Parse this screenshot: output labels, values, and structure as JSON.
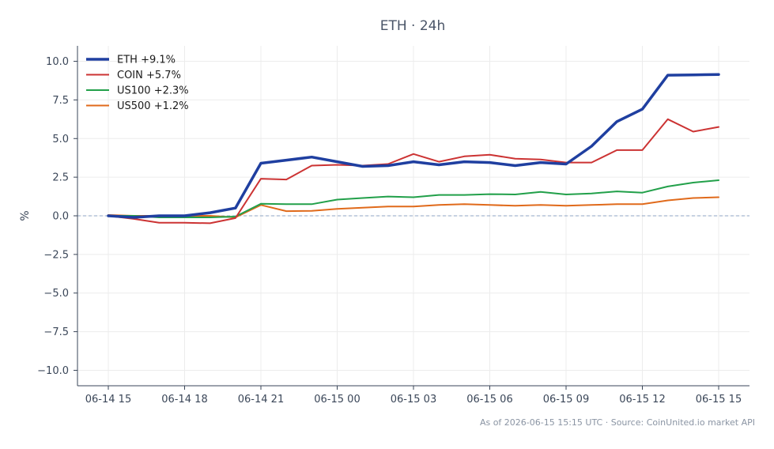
{
  "chart_data": {
    "type": "line",
    "title": "ETH · 24h",
    "ylabel": "%",
    "xlabel": "",
    "ylim": [
      -11,
      11
    ],
    "yticks": [
      10.0,
      7.5,
      5.0,
      2.5,
      0.0,
      -2.5,
      -5.0,
      -7.5,
      -10.0
    ],
    "ytick_labels": [
      "10.0",
      "7.5",
      "5.0",
      "2.5",
      "0.0",
      "−2.5",
      "−5.0",
      "−7.5",
      "−10.0"
    ],
    "x_count": 25,
    "xticks": [
      0,
      3,
      6,
      9,
      12,
      15,
      18,
      21,
      24
    ],
    "xtick_labels": [
      "06-14 15",
      "06-14 18",
      "06-14 21",
      "06-15 00",
      "06-15 03",
      "06-15 06",
      "06-15 09",
      "06-15 12",
      "06-15 15"
    ],
    "grid": true,
    "zero_line": true,
    "legend_position": "top-left",
    "series": [
      {
        "name": "ETH +9.1%",
        "color": "#1f3fa0",
        "width": 3.5,
        "values": [
          0.0,
          -0.1,
          0.0,
          0.0,
          0.2,
          0.5,
          3.4,
          3.6,
          3.8,
          3.5,
          3.2,
          3.25,
          3.5,
          3.3,
          3.5,
          3.45,
          3.25,
          3.45,
          3.35,
          4.5,
          6.1,
          6.9,
          9.1,
          9.12,
          9.15
        ]
      },
      {
        "name": "COIN +5.7%",
        "color": "#cc3333",
        "width": 2,
        "values": [
          0.0,
          -0.2,
          -0.45,
          -0.45,
          -0.48,
          -0.15,
          2.4,
          2.35,
          3.25,
          3.3,
          3.25,
          3.35,
          4.0,
          3.5,
          3.85,
          3.95,
          3.7,
          3.65,
          3.45,
          3.45,
          4.25,
          4.25,
          6.25,
          5.45,
          5.75
        ]
      },
      {
        "name": "US100 +2.3%",
        "color": "#22a04a",
        "width": 2,
        "values": [
          0.0,
          0.0,
          -0.1,
          -0.1,
          -0.1,
          -0.05,
          0.78,
          0.75,
          0.75,
          1.05,
          1.15,
          1.25,
          1.2,
          1.35,
          1.35,
          1.4,
          1.38,
          1.55,
          1.38,
          1.45,
          1.58,
          1.5,
          1.9,
          2.15,
          2.3
        ]
      },
      {
        "name": "US500 +1.2%",
        "color": "#e06a1b",
        "width": 2,
        "values": [
          0.05,
          0.0,
          0.0,
          0.0,
          0.0,
          -0.1,
          0.7,
          0.3,
          0.32,
          0.45,
          0.52,
          0.6,
          0.6,
          0.7,
          0.75,
          0.7,
          0.65,
          0.7,
          0.65,
          0.7,
          0.75,
          0.75,
          1.0,
          1.15,
          1.2
        ]
      }
    ]
  },
  "footer": {
    "source_text": "As of 2026-06-15 15:15 UTC · Source: CoinUnited.io market API"
  }
}
